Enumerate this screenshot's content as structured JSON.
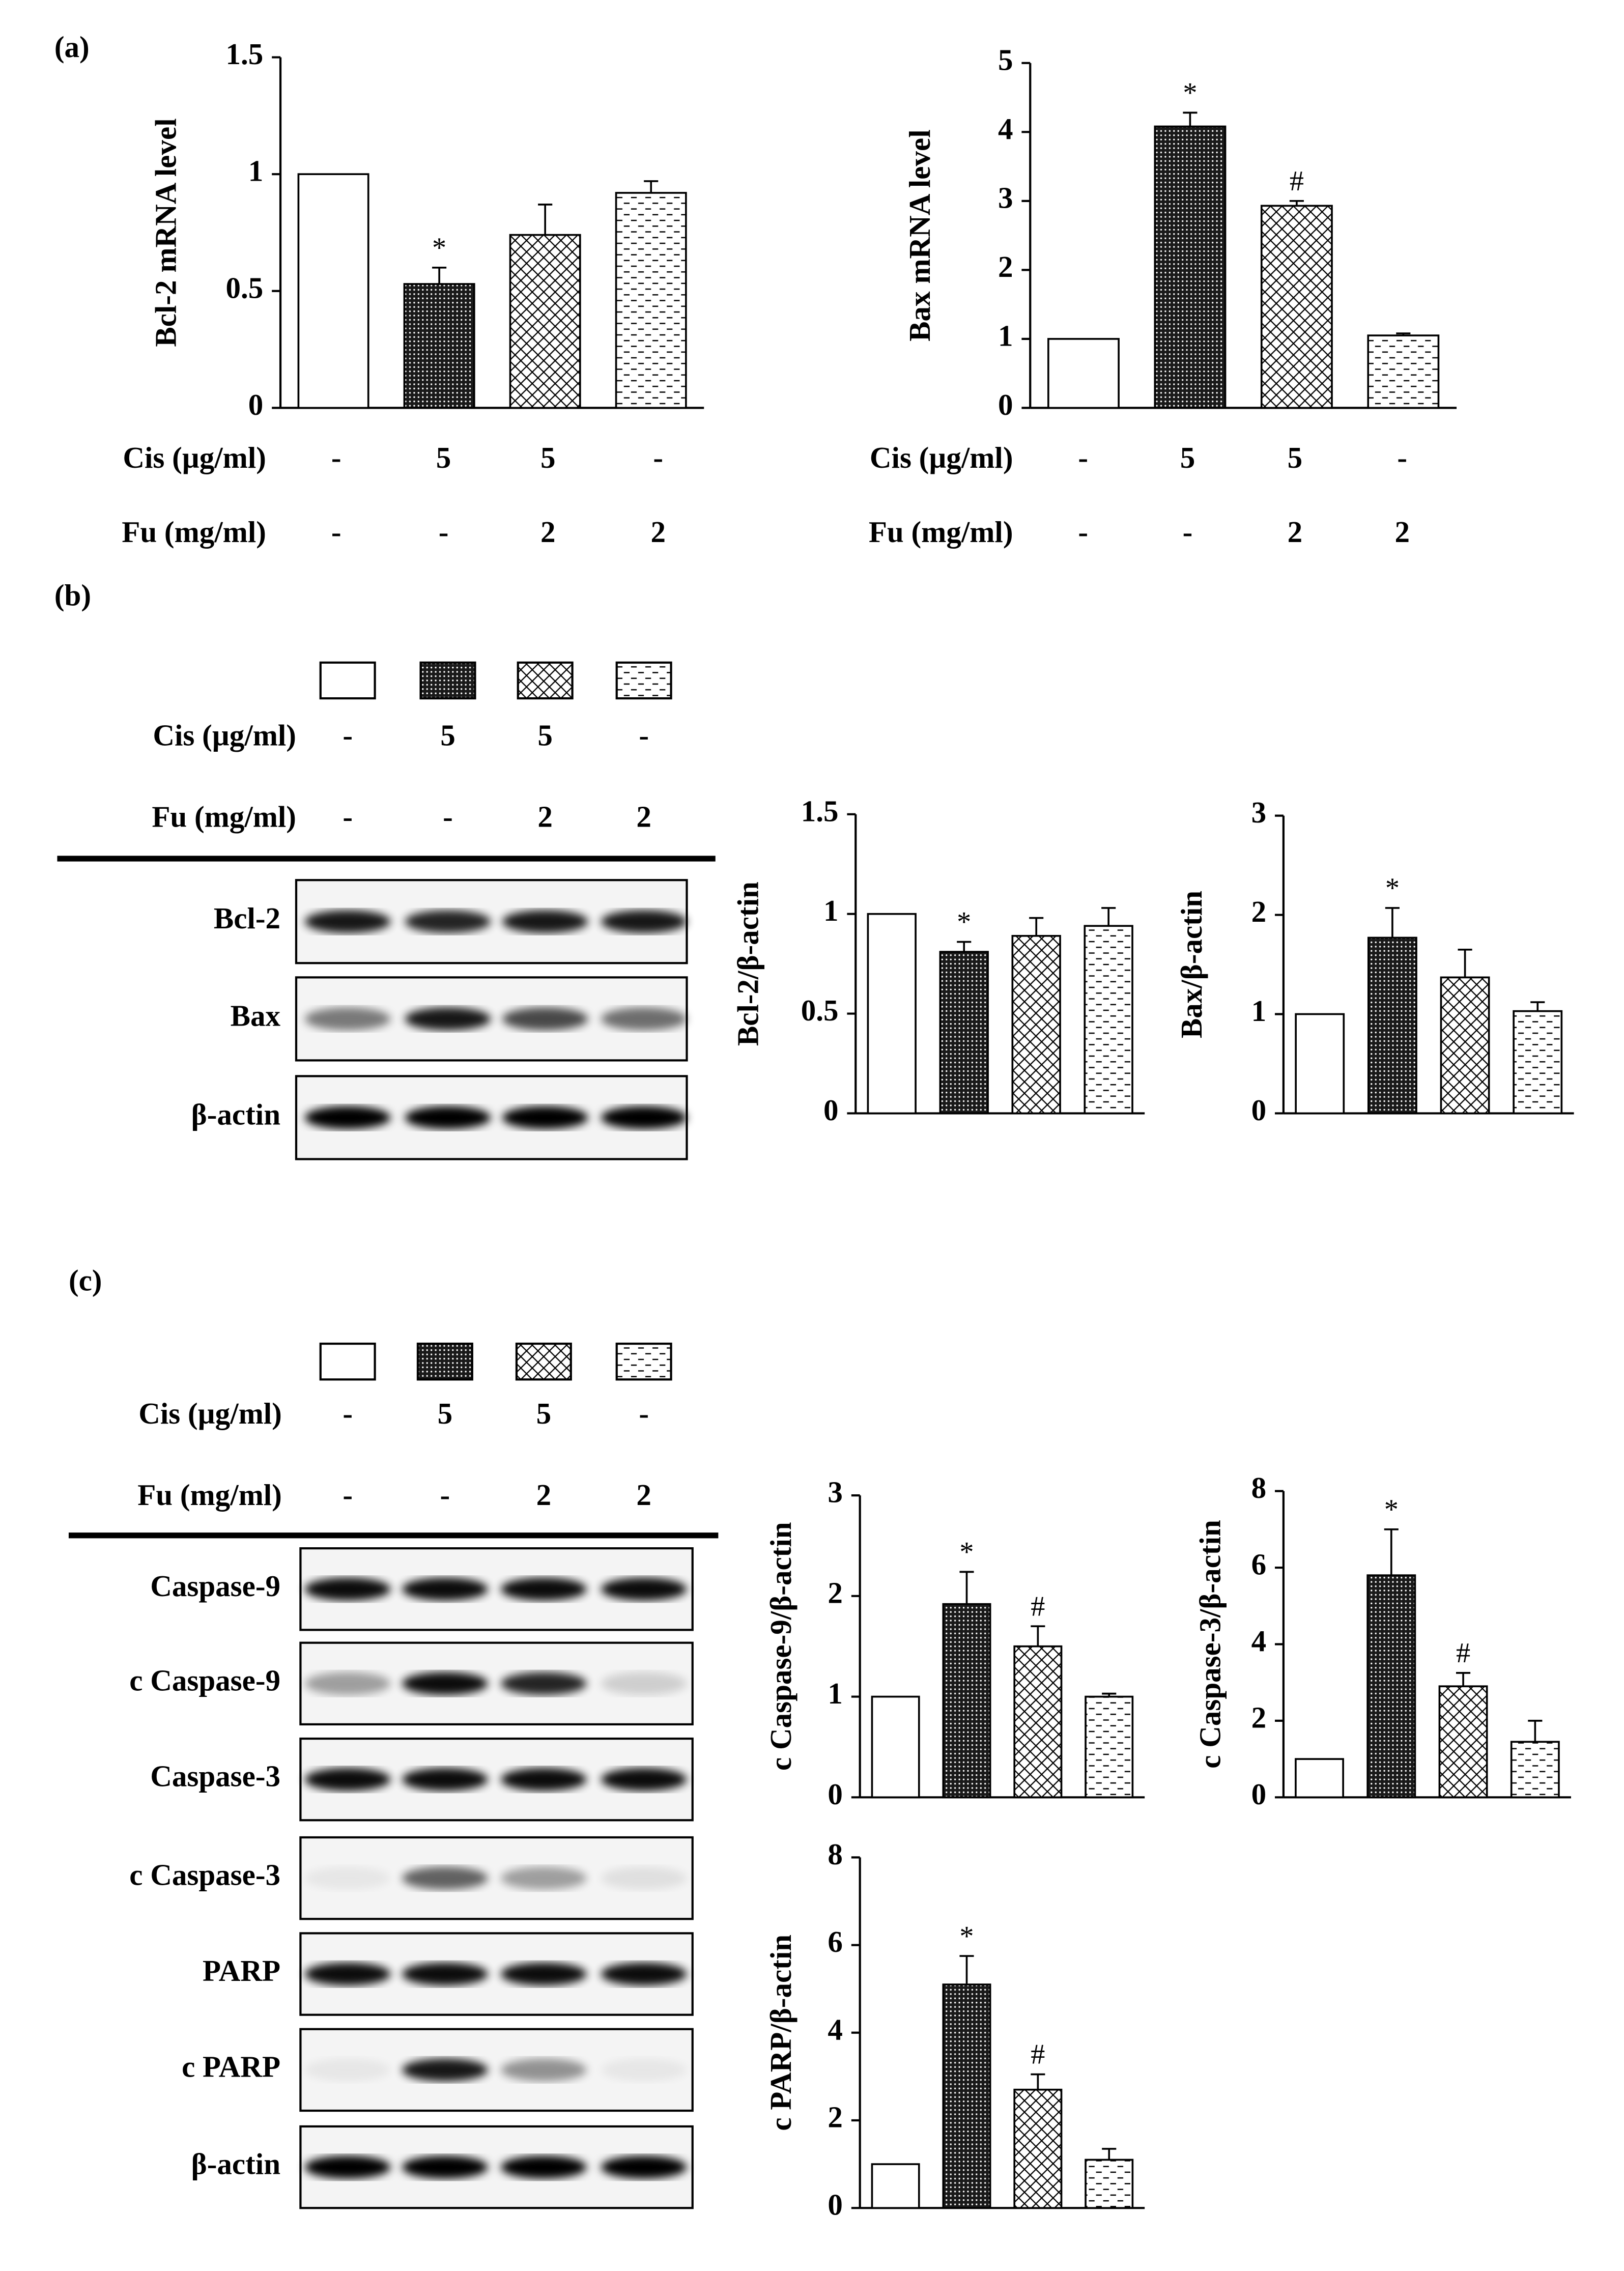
{
  "panel_labels": [
    "(a)",
    "(b)",
    "(c)"
  ],
  "treatments": [
    {
      "name": "Cis (µg/ml)",
      "values": [
        "-",
        "5",
        "5",
        "-"
      ]
    },
    {
      "name": "Fu (mg/ml)",
      "values": [
        "-",
        "-",
        "2",
        "2"
      ]
    }
  ],
  "bar_patterns": [
    "open",
    "dense-dots",
    "crosshatch",
    "dashes"
  ],
  "blots": {
    "b": [
      "Bcl-2",
      "Bax",
      "β-actin"
    ],
    "c": [
      "Caspase-9",
      "c Caspase-9",
      "Caspase-3",
      "c Caspase-3",
      "PARP",
      "c PARP",
      "β-actin"
    ]
  },
  "chart_data": [
    {
      "type": "bar",
      "y_label": "Bcl-2 mRNA level",
      "values": [
        1,
        0.53,
        0.74,
        0.92
      ],
      "errors": [
        0,
        0.07,
        0.13,
        0.05
      ],
      "annotations": [
        null,
        "*",
        null,
        null
      ],
      "ylim": [
        0,
        1.5
      ],
      "yticks": [
        0,
        0.5,
        1,
        1.5
      ]
    },
    {
      "type": "bar",
      "y_label": "Bax mRNA level",
      "values": [
        1,
        4.08,
        2.93,
        1.05
      ],
      "errors": [
        0,
        0.2,
        0.07,
        0.03
      ],
      "annotations": [
        null,
        "*",
        "#",
        null
      ],
      "ylim": [
        0,
        5
      ],
      "yticks": [
        0,
        1,
        2,
        3,
        4,
        5
      ]
    },
    {
      "type": "bar",
      "y_label": "Bcl-2/β-actin",
      "values": [
        1,
        0.81,
        0.89,
        0.94
      ],
      "errors": [
        0,
        0.05,
        0.09,
        0.09
      ],
      "annotations": [
        null,
        "*",
        null,
        null
      ],
      "ylim": [
        0,
        1.5
      ],
      "yticks": [
        0,
        0.5,
        1,
        1.5
      ]
    },
    {
      "type": "bar",
      "y_label": "Bax/β-actin",
      "values": [
        1,
        1.77,
        1.37,
        1.03
      ],
      "errors": [
        0,
        0.3,
        0.28,
        0.09
      ],
      "annotations": [
        null,
        "*",
        null,
        null
      ],
      "ylim": [
        0,
        3
      ],
      "yticks": [
        0,
        1,
        2,
        3
      ]
    },
    {
      "type": "bar",
      "y_label": "c Caspase-9/β-actin",
      "values": [
        1,
        1.92,
        1.5,
        1.0
      ],
      "errors": [
        0,
        0.32,
        0.2,
        0.03
      ],
      "annotations": [
        null,
        "*",
        "#",
        null
      ],
      "ylim": [
        0,
        3
      ],
      "yticks": [
        0,
        1,
        2,
        3
      ]
    },
    {
      "type": "bar",
      "y_label": "c Caspase-3/β-actin",
      "values": [
        1,
        5.8,
        2.9,
        1.45
      ],
      "errors": [
        0,
        1.2,
        0.35,
        0.55
      ],
      "annotations": [
        null,
        "*",
        "#",
        null
      ],
      "ylim": [
        0,
        8
      ],
      "yticks": [
        0,
        2,
        4,
        6,
        8
      ]
    },
    {
      "type": "bar",
      "y_label": "c PARP/β-actin",
      "values": [
        1,
        5.1,
        2.7,
        1.1
      ],
      "errors": [
        0,
        0.65,
        0.35,
        0.25
      ],
      "annotations": [
        null,
        "*",
        "#",
        null
      ],
      "ylim": [
        0,
        8
      ],
      "yticks": [
        0,
        2,
        4,
        6,
        8
      ]
    }
  ]
}
